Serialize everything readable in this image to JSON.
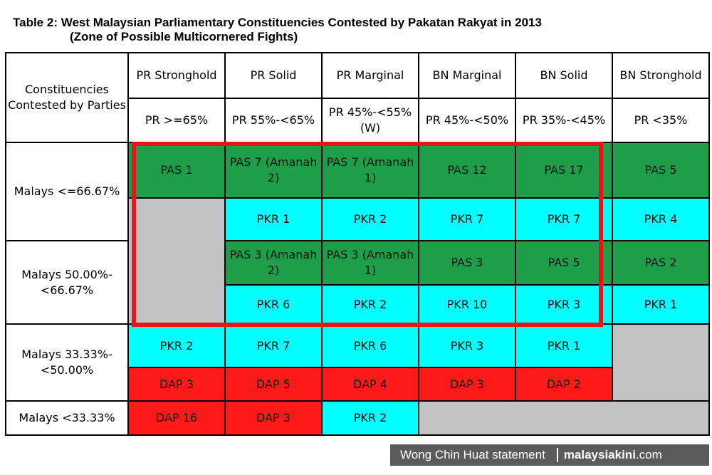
{
  "title": {
    "line1": "Table 2: West Malaysian Parliamentary Constituencies Contested by Pakatan Rakyat in 2013",
    "line2": "(Zone of Possible Multicornered Fights)"
  },
  "table": {
    "corner": "Constituencies Contested by Parties",
    "columns": [
      {
        "name": "PR Stronghold",
        "range": "PR >=65%"
      },
      {
        "name": "PR Solid",
        "range": "PR 55%-<65%"
      },
      {
        "name": "PR Marginal",
        "range": "PR 45%-<55%(W)"
      },
      {
        "name": "BN Marginal",
        "range": "PR 45%-<50%"
      },
      {
        "name": "BN Solid",
        "range": "PR 35%-<45%"
      },
      {
        "name": "BN Stronghold",
        "range": "PR <35%"
      }
    ],
    "row_groups": [
      {
        "label": "Malays <=66.67%",
        "rows": [
          [
            "PAS 1",
            "PAS 7 (Amanah 2)",
            "PAS 7 (Amanah 1)",
            "PAS 12",
            "PAS 17",
            "PAS 5"
          ],
          [
            "",
            "PKR 1",
            "PKR 2",
            "PKR 7",
            "PKR 7",
            "PKR 4"
          ]
        ]
      },
      {
        "label": "Malays 50.00%-<66.67%",
        "rows": [
          [
            "",
            "PAS 3 (Amanah 2)",
            "PAS 3 (Amanah 1)",
            "PAS 3",
            "PAS 5",
            "PAS 2"
          ],
          [
            "",
            "PKR 6",
            "PKR 2",
            "PKR 10",
            "PKR 3",
            "PKR 1"
          ]
        ]
      },
      {
        "label": "Malays 33.33%-<50.00%",
        "rows": [
          [
            "PKR 2",
            "PKR 7",
            "PKR 6",
            "PKR 3",
            "PKR 1",
            ""
          ],
          [
            "DAP 3",
            "DAP 5",
            "DAP 4",
            "DAP 3",
            "DAP 2",
            ""
          ]
        ]
      },
      {
        "label": "Malays <33.33%",
        "rows": [
          [
            "DAP 16",
            "DAP 3",
            "PKR 2",
            "",
            "",
            ""
          ]
        ]
      }
    ]
  },
  "colors": {
    "pas": "#1e9e48",
    "pkr": "#00ffff",
    "dap": "#ff1a1a",
    "empty": "#c3c3c3",
    "highlight_box": "#e8141b"
  },
  "footer": {
    "credit": "Wong Chin Huat statement",
    "brand_bold": "malaysiakini",
    "brand_suffix": ".com"
  }
}
